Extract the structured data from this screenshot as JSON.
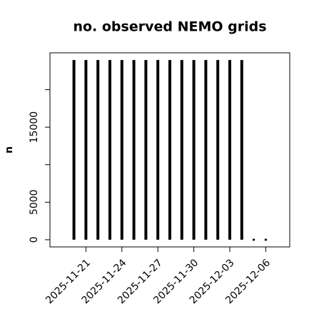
{
  "chart_data": {
    "type": "needle",
    "title": "no. observed NEMO grids",
    "y_label": "n",
    "x": [
      "2025-11-20",
      "2025-11-21",
      "2025-11-22",
      "2025-11-23",
      "2025-11-24",
      "2025-11-25",
      "2025-11-26",
      "2025-11-27",
      "2025-11-28",
      "2025-11-29",
      "2025-11-30",
      "2025-12-01",
      "2025-12-02",
      "2025-12-03",
      "2025-12-04",
      "2025-12-05",
      "2025-12-06"
    ],
    "values": [
      23950,
      23950,
      23950,
      23950,
      23950,
      23950,
      23950,
      23950,
      23950,
      23950,
      23950,
      23950,
      23950,
      23950,
      23950,
      0,
      0
    ],
    "color": "#000000",
    "xlim": [
      "2025-11-18",
      "2025-12-08"
    ],
    "xticks": [
      "2025-11-21",
      "2025-11-24",
      "2025-11-27",
      "2025-11-30",
      "2025-12-03",
      "2025-12-06"
    ],
    "ylim": [
      -958,
      24908
    ],
    "yticks": [
      0,
      5000,
      15000
    ],
    "yminor_ticks": [
      10000,
      20000
    ]
  }
}
